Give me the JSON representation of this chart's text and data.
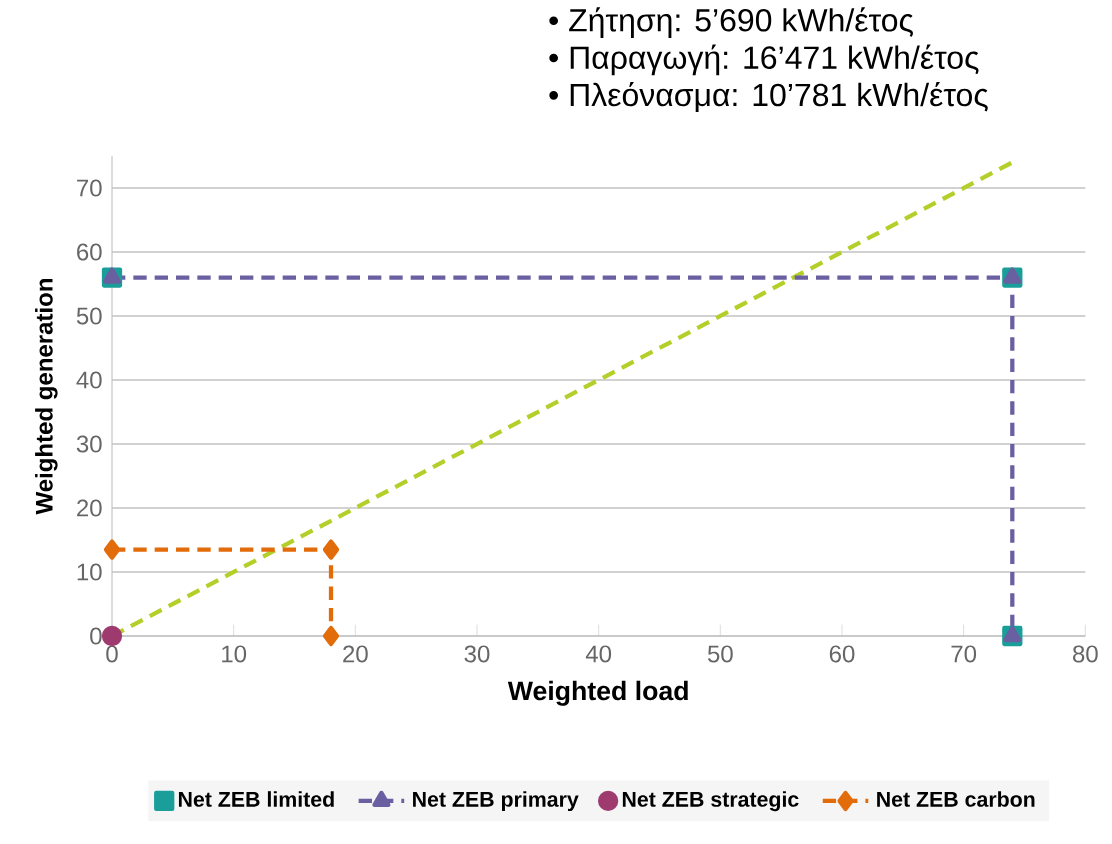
{
  "chart_data": {
    "type": "line",
    "xlabel": "Weighted load",
    "ylabel": "Weighted generation",
    "annotations": [
      "•  Ζήτηση: 5’690 kWh/έτος",
      "•  Παραγωγή: 16’471 kWh/έτος",
      "•  Πλεόνασμα: 10’781 kWh/έτος"
    ],
    "series": [
      {
        "color": "#b5cf2a",
        "line_style": "dashed",
        "marker": "none",
        "x": [
          0,
          74
        ],
        "values": [
          0,
          74
        ]
      },
      {
        "name": "Net ZEB limited",
        "type": "scatter",
        "color": "#1a9e9a",
        "marker": "square",
        "x": [
          0,
          74,
          74
        ],
        "values": [
          56,
          56,
          0
        ]
      },
      {
        "name": "Net ZEB primary",
        "color": "#6a5fa0",
        "line_style": "dashed",
        "marker": "triangle",
        "x": [
          0,
          74,
          74
        ],
        "values": [
          56,
          56,
          0
        ]
      },
      {
        "name": "Net ZEB strategic",
        "type": "scatter",
        "color": "#9e3a6e",
        "marker": "circle",
        "x": [
          0
        ],
        "values": [
          0
        ]
      },
      {
        "name": "Net ZEB carbon",
        "color": "#e36c0a",
        "line_style": "dashed",
        "marker": "diamond",
        "x": [
          0,
          18,
          18
        ],
        "values": [
          13.5,
          13.5,
          0
        ]
      }
    ],
    "xlim": [
      0,
      80
    ],
    "ylim": [
      0,
      75
    ],
    "xticks": [
      0,
      10,
      20,
      30,
      40,
      50,
      60,
      70,
      80
    ],
    "yticks": [
      0,
      10,
      20,
      30,
      40,
      50,
      60,
      70
    ],
    "grid": "y",
    "legend": "bottom"
  }
}
